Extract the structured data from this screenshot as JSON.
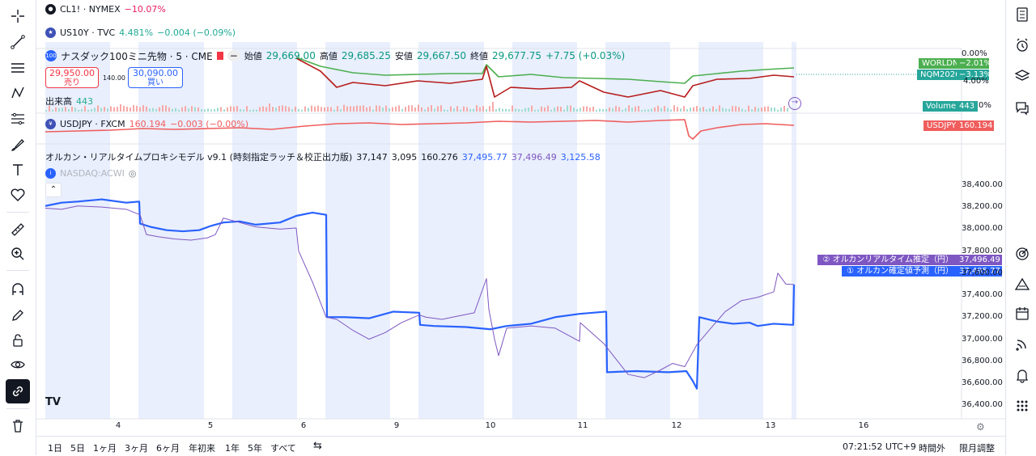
{
  "symbols": {
    "cl": {
      "name": "CL1! · NYMEX",
      "change": "−10.07%"
    },
    "us10y": {
      "name": "US10Y · TVC",
      "value": "4.481%",
      "change": "−0.004 (−0.09%)"
    },
    "main": {
      "name": "ナスダック100ミニ先物 · 5 · CME",
      "open_label": "始値",
      "open": "29,669.00",
      "high_label": "高値",
      "high": "29,685.25",
      "low_label": "安値",
      "low": "29,667.50",
      "close_label": "終値",
      "close": "29,677.75",
      "change": "+7.75 (+0.03%)"
    },
    "sell": {
      "price": "29,950.00",
      "label": "売り"
    },
    "spread": "140.00",
    "buy": {
      "price": "30,090.00",
      "label": "買い"
    },
    "volume": {
      "label": "出来高",
      "value": "443"
    },
    "usdjpy": {
      "name": "USDJPY · FXCM",
      "value": "160.194",
      "change": "−0.003 (−0.00%)"
    },
    "indicator": {
      "name": "オルカン・リアルタイムプロキシモデル v9.1 (時刻指定ラッチ＆校正出力版)",
      "v1": "37,147",
      "v2": "3,095",
      "v3": "160.276",
      "v4": "37,495.77",
      "v5": "37,496.49",
      "v6": "3,125.58",
      "sub_label": "NASDAQ:ACWI"
    }
  },
  "right_labels": {
    "pct_zero": "0.00%",
    "worldn": {
      "name": "WORLDN",
      "value": "−2.01%"
    },
    "nqm": {
      "name": "NQM2026",
      "value": "−3.13%"
    },
    "pct_4": "4.00%",
    "volume": {
      "name": "Volume",
      "value": "443"
    },
    "pct_0b": "0%",
    "usdjpy": {
      "name": "USDJPY",
      "value": "160.194"
    },
    "realtime": {
      "name": "② オルカンリアルタイム推定（円）",
      "value": "37,496.49"
    },
    "confirmed": {
      "name": "① オルカン確定値予測（円）",
      "value": "37,495.77"
    }
  },
  "chart_data": {
    "type": "line",
    "x_ticks": [
      "4",
      "5",
      "6",
      "9",
      "10",
      "11",
      "12",
      "13",
      "16"
    ],
    "y_ticks": [
      "38,400.00",
      "38,200.00",
      "38,000.00",
      "37,800.00",
      "37,600.00",
      "37,400.00",
      "37,200.00",
      "37,000.00",
      "36,800.00",
      "36,600.00",
      "36,400.00"
    ],
    "ylim": [
      36350,
      38480
    ],
    "series": [
      {
        "name": "① オルカン確定値予測（円）",
        "color": "#2962ff",
        "points": [
          [
            0,
            38210
          ],
          [
            20,
            38240
          ],
          [
            40,
            38250
          ],
          [
            70,
            38270
          ],
          [
            100,
            38240
          ],
          [
            116,
            38250
          ],
          [
            117,
            38050
          ],
          [
            130,
            38020
          ],
          [
            150,
            37990
          ],
          [
            170,
            37980
          ],
          [
            190,
            37990
          ],
          [
            205,
            38030
          ],
          [
            220,
            38060
          ],
          [
            240,
            38070
          ],
          [
            260,
            38040
          ],
          [
            290,
            38060
          ],
          [
            310,
            38120
          ],
          [
            330,
            38150
          ],
          [
            347,
            38130
          ],
          [
            348,
            37200
          ],
          [
            370,
            37200
          ],
          [
            400,
            37190
          ],
          [
            430,
            37250
          ],
          [
            462,
            37240
          ],
          [
            463,
            37130
          ],
          [
            480,
            37120
          ],
          [
            520,
            37110
          ],
          [
            550,
            37090
          ],
          [
            570,
            37120
          ],
          [
            600,
            37140
          ],
          [
            630,
            37200
          ],
          [
            660,
            37230
          ],
          [
            693,
            37250
          ],
          [
            694,
            36700
          ],
          [
            730,
            36710
          ],
          [
            770,
            36700
          ],
          [
            792,
            36710
          ],
          [
            800,
            36620
          ],
          [
            805,
            36550
          ],
          [
            808,
            37200
          ],
          [
            830,
            37160
          ],
          [
            850,
            37140
          ],
          [
            870,
            37150
          ],
          [
            880,
            37120
          ],
          [
            900,
            37140
          ],
          [
            924,
            37130
          ],
          [
            925,
            37495.77
          ]
        ]
      },
      {
        "name": "② オルカンリアルタイム推定（円）",
        "color": "#7e57c2",
        "points": [
          [
            0,
            38190
          ],
          [
            20,
            38180
          ],
          [
            40,
            38210
          ],
          [
            70,
            38200
          ],
          [
            100,
            38180
          ],
          [
            117,
            38130
          ],
          [
            125,
            37950
          ],
          [
            140,
            37930
          ],
          [
            160,
            37910
          ],
          [
            180,
            37900
          ],
          [
            200,
            37920
          ],
          [
            210,
            37950
          ],
          [
            220,
            38100
          ],
          [
            240,
            38060
          ],
          [
            260,
            38020
          ],
          [
            290,
            38000
          ],
          [
            310,
            38010
          ],
          [
            313,
            37800
          ],
          [
            330,
            37520
          ],
          [
            347,
            37200
          ],
          [
            360,
            37180
          ],
          [
            380,
            37080
          ],
          [
            400,
            37000
          ],
          [
            420,
            37060
          ],
          [
            440,
            37150
          ],
          [
            462,
            37220
          ],
          [
            470,
            37200
          ],
          [
            490,
            37180
          ],
          [
            510,
            37210
          ],
          [
            530,
            37240
          ],
          [
            545,
            37550
          ],
          [
            548,
            37270
          ],
          [
            555,
            37000
          ],
          [
            560,
            36850
          ],
          [
            570,
            37100
          ],
          [
            600,
            37120
          ],
          [
            630,
            37100
          ],
          [
            660,
            36980
          ],
          [
            661,
            37150
          ],
          [
            690,
            36960
          ],
          [
            720,
            36680
          ],
          [
            740,
            36650
          ],
          [
            760,
            36720
          ],
          [
            775,
            36780
          ],
          [
            790,
            36750
          ],
          [
            805,
            36950
          ],
          [
            820,
            37080
          ],
          [
            840,
            37250
          ],
          [
            860,
            37350
          ],
          [
            880,
            37380
          ],
          [
            900,
            37430
          ],
          [
            905,
            37600
          ],
          [
            915,
            37500
          ],
          [
            925,
            37496.49
          ]
        ]
      },
      {
        "name": "WORLDN",
        "color": "#4caf50",
        "points": [
          [
            310,
            71
          ],
          [
            340,
            82
          ],
          [
            380,
            90
          ],
          [
            420,
            93
          ],
          [
            460,
            92
          ],
          [
            500,
            91
          ],
          [
            540,
            91
          ],
          [
            545,
            80
          ],
          [
            560,
            95
          ],
          [
            600,
            92
          ],
          [
            640,
            96
          ],
          [
            680,
            97
          ],
          [
            720,
            98
          ],
          [
            760,
            101
          ],
          [
            790,
            103
          ],
          [
            800,
            94
          ],
          [
            830,
            91
          ],
          [
            860,
            88
          ],
          [
            890,
            86
          ],
          [
            925,
            84
          ]
        ]
      },
      {
        "name": "NQM2026",
        "color": "#b71c1c",
        "points": [
          [
            310,
            72
          ],
          [
            340,
            88
          ],
          [
            360,
            108
          ],
          [
            380,
            102
          ],
          [
            420,
            106
          ],
          [
            460,
            100
          ],
          [
            500,
            103
          ],
          [
            540,
            98
          ],
          [
            545,
            82
          ],
          [
            555,
            120
          ],
          [
            575,
            108
          ],
          [
            610,
            110
          ],
          [
            650,
            108
          ],
          [
            660,
            100
          ],
          [
            690,
            114
          ],
          [
            720,
            120
          ],
          [
            760,
            112
          ],
          [
            790,
            120
          ],
          [
            800,
            106
          ],
          [
            830,
            98
          ],
          [
            870,
            97
          ],
          [
            900,
            93
          ],
          [
            925,
            95
          ]
        ]
      },
      {
        "name": "USDJPY",
        "color": "#f05d5d",
        "points": [
          [
            0,
            163
          ],
          [
            40,
            162
          ],
          [
            80,
            161
          ],
          [
            120,
            159
          ],
          [
            160,
            160
          ],
          [
            200,
            159
          ],
          [
            240,
            158
          ],
          [
            280,
            160
          ],
          [
            320,
            156
          ],
          [
            360,
            153
          ],
          [
            400,
            152
          ],
          [
            440,
            154
          ],
          [
            480,
            153
          ],
          [
            520,
            152
          ],
          [
            560,
            150
          ],
          [
            600,
            151
          ],
          [
            640,
            150
          ],
          [
            680,
            149
          ],
          [
            720,
            151
          ],
          [
            760,
            149
          ],
          [
            790,
            148
          ],
          [
            795,
            168
          ],
          [
            800,
            172
          ],
          [
            810,
            162
          ],
          [
            830,
            158
          ],
          [
            860,
            154
          ],
          [
            890,
            153
          ],
          [
            925,
            155
          ]
        ]
      }
    ]
  },
  "bottom_bar": {
    "ranges": [
      "1日",
      "5日",
      "1ヶ月",
      "3ヶ月",
      "6ヶ月",
      "年初来",
      "1年",
      "5年",
      "すべて"
    ],
    "time": "07:21:52 UTC+9",
    "session": "時間外",
    "adjust": "限月調整"
  },
  "colors": {
    "accent": "#2962ff",
    "session_bg": "#e9effd",
    "up": "#089981",
    "down": "#f23645"
  }
}
